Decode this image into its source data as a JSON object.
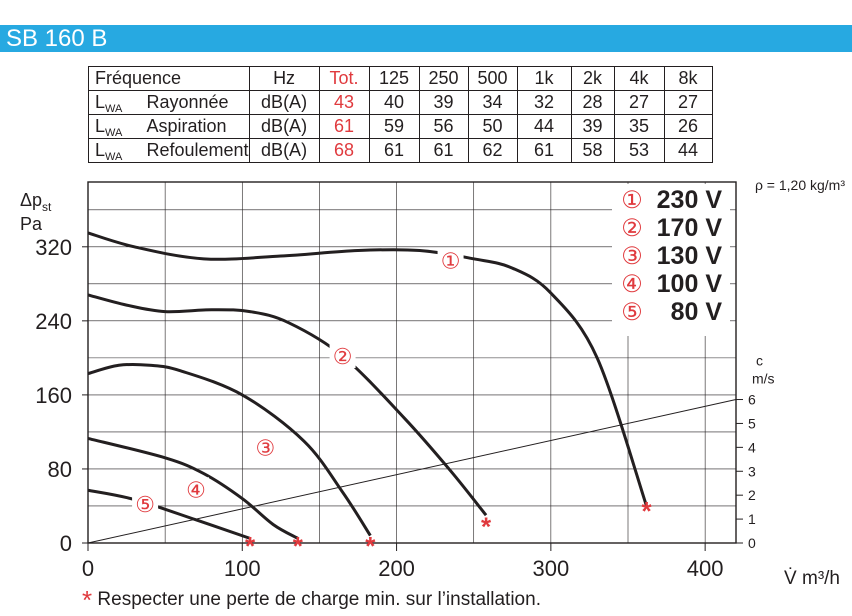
{
  "header": {
    "title": "SB 160 B"
  },
  "sound_table": {
    "columns": [
      "Fréquence",
      "",
      "Hz",
      "Tot.",
      "125",
      "250",
      "500",
      "1k",
      "2k",
      "4k",
      "8k"
    ],
    "rows": [
      {
        "symbol": "L",
        "subscript": "WA",
        "label": "Rayonnée",
        "unit": "dB(A)",
        "total": "43",
        "values": [
          "40",
          "39",
          "34",
          "32",
          "28",
          "27",
          "27"
        ]
      },
      {
        "symbol": "L",
        "subscript": "WA",
        "label": "Aspiration",
        "unit": "dB(A)",
        "total": "61",
        "values": [
          "59",
          "56",
          "50",
          "44",
          "39",
          "35",
          "26"
        ]
      },
      {
        "symbol": "L",
        "subscript": "WA",
        "label": "Refoulement",
        "unit": "dB(A)",
        "total": "68",
        "values": [
          "61",
          "61",
          "62",
          "61",
          "58",
          "53",
          "44"
        ]
      }
    ]
  },
  "chart_data": {
    "type": "line",
    "xlabel": "V̇ m³/h",
    "ylabel_symbol": "Δp",
    "ylabel_subscript": "st",
    "ylabel_unit": "Pa",
    "xlim": [
      0,
      420
    ],
    "ylim": [
      0,
      390
    ],
    "xticks": [
      0,
      100,
      200,
      300,
      400
    ],
    "yticks": [
      0,
      80,
      160,
      240,
      320
    ],
    "grid": true,
    "density_label": "ρ = 1,20 kg/m³",
    "secondary_axis": {
      "label": "c",
      "unit": "m/s",
      "ticks": [
        0,
        1,
        2,
        3,
        4,
        5,
        6
      ],
      "line": [
        [
          0,
          0
        ],
        [
          420,
          155
        ]
      ]
    },
    "series": [
      {
        "marker": "①",
        "name": "230 V",
        "points": [
          [
            0,
            335
          ],
          [
            30,
            320
          ],
          [
            75,
            307
          ],
          [
            125,
            310
          ],
          [
            175,
            316
          ],
          [
            215,
            316
          ],
          [
            250,
            307
          ],
          [
            275,
            297
          ],
          [
            300,
            270
          ],
          [
            330,
            200
          ],
          [
            362,
            40
          ]
        ],
        "label_at": [
          235,
          305
        ],
        "end_marker": [
          362,
          40
        ]
      },
      {
        "marker": "②",
        "name": "170 V",
        "points": [
          [
            0,
            268
          ],
          [
            25,
            257
          ],
          [
            50,
            250
          ],
          [
            80,
            252
          ],
          [
            105,
            250
          ],
          [
            130,
            238
          ],
          [
            165,
            202
          ],
          [
            205,
            135
          ],
          [
            235,
            78
          ],
          [
            258,
            30
          ]
        ],
        "label_at": [
          165,
          202
        ],
        "end_marker": [
          258,
          23
        ]
      },
      {
        "marker": "③",
        "name": "130 V",
        "points": [
          [
            0,
            183
          ],
          [
            20,
            192
          ],
          [
            40,
            192
          ],
          [
            60,
            186
          ],
          [
            100,
            160
          ],
          [
            140,
            110
          ],
          [
            165,
            55
          ],
          [
            183,
            8
          ]
        ],
        "label_at": [
          115,
          103
        ],
        "end_marker": [
          183,
          2
        ]
      },
      {
        "marker": "④",
        "name": "100 V",
        "points": [
          [
            0,
            113
          ],
          [
            50,
            92
          ],
          [
            75,
            75
          ],
          [
            100,
            48
          ],
          [
            120,
            20
          ],
          [
            136,
            5
          ]
        ],
        "label_at": [
          70,
          58
        ],
        "end_marker": [
          136,
          2
        ]
      },
      {
        "marker": "⑤",
        "name": "80 V",
        "points": [
          [
            0,
            57
          ],
          [
            30,
            47
          ],
          [
            70,
            25
          ],
          [
            105,
            5
          ]
        ],
        "label_at": [
          37,
          42
        ],
        "end_marker": [
          105,
          2
        ]
      }
    ]
  },
  "footnote": {
    "mark": "*",
    "text": "Respecter une perte de charge min. sur l’installation."
  },
  "colors": {
    "title_bar": "#27a9e1",
    "accent": "#e03a3e",
    "line": "#231f20",
    "grid": "#231f20"
  }
}
